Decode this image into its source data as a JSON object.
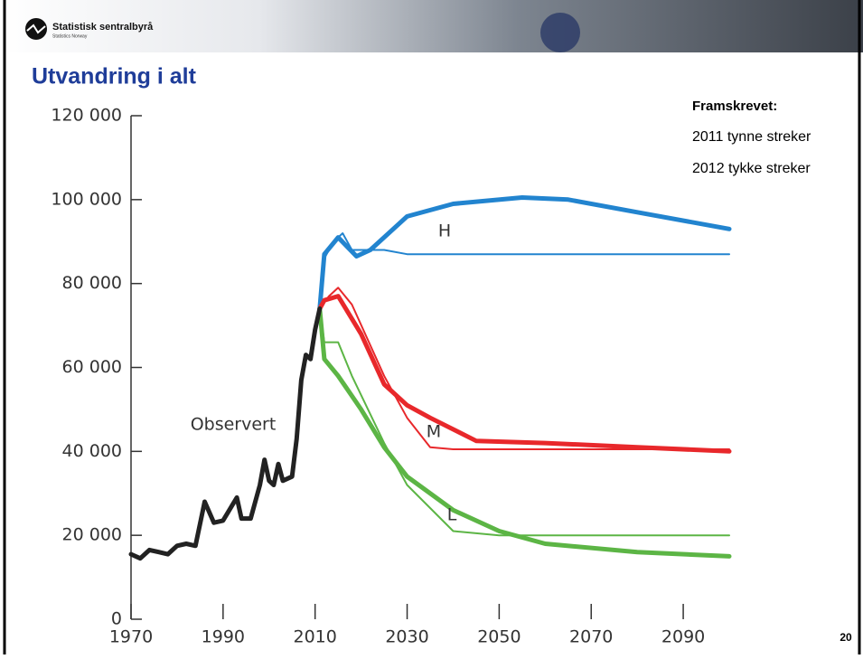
{
  "header": {
    "logo_name": "Statistisk sentralbyrå",
    "logo_subname": "Statistics Norway"
  },
  "slide_title": "Utvandring i alt",
  "notes": {
    "heading": "Framskrevet:",
    "lines": [
      "2011 tynne streker",
      "2012 tykke streker"
    ]
  },
  "page_number": "20",
  "chart_data": {
    "type": "line",
    "annotations": [
      "Observert",
      "H",
      "M",
      "L"
    ],
    "xlim": [
      1970,
      2100
    ],
    "xticks": [
      1970,
      1990,
      2010,
      2030,
      2050,
      2070,
      2090
    ],
    "ylim": [
      0,
      120000
    ],
    "yticks": [
      0,
      {
        "value": 20000,
        "label": "20 000"
      },
      {
        "value": 40000,
        "label": "40 000"
      },
      {
        "value": 60000,
        "label": "60 000"
      },
      {
        "value": 80000,
        "label": "80 000"
      },
      {
        "value": 100000,
        "label": "100 000"
      },
      {
        "value": 120000,
        "label": "120 000"
      }
    ],
    "series": [
      {
        "color": "#2284cf",
        "linewidth": 2,
        "x": [
          2011,
          2012,
          2014,
          2016,
          2018,
          2020,
          2025,
          2030,
          2040,
          2100
        ],
        "values": [
          74000,
          86000,
          90000,
          92000,
          88000,
          88000,
          88000,
          87000,
          87000,
          87000
        ]
      },
      {
        "color": "#2284cf",
        "linewidth": 5,
        "x": [
          2011,
          2012,
          2015,
          2019,
          2022,
          2030,
          2040,
          2055,
          2065,
          2080,
          2100
        ],
        "values": [
          74000,
          87000,
          91000,
          86500,
          88000,
          96000,
          99000,
          100500,
          100000,
          97000,
          93000
        ]
      },
      {
        "color": "#e8282b",
        "linewidth": 2,
        "x": [
          2011,
          2013,
          2015,
          2018,
          2025,
          2030,
          2035,
          2040,
          2100
        ],
        "values": [
          74000,
          77000,
          79000,
          75000,
          58000,
          48000,
          41000,
          40500,
          40500
        ]
      },
      {
        "color": "#e8282b",
        "linewidth": 5,
        "x": [
          2011,
          2012,
          2015,
          2020,
          2025,
          2030,
          2035,
          2045,
          2060,
          2080,
          2100
        ],
        "values": [
          74000,
          76000,
          77000,
          68000,
          56000,
          51000,
          48000,
          42500,
          42000,
          41000,
          40000
        ]
      },
      {
        "color": "#5cb545",
        "linewidth": 2,
        "x": [
          2011,
          2012,
          2015,
          2018,
          2025,
          2030,
          2040,
          2050,
          2100
        ],
        "values": [
          74000,
          66000,
          66000,
          58000,
          42000,
          32000,
          21000,
          20000,
          20000
        ]
      },
      {
        "color": "#5cb545",
        "linewidth": 5,
        "x": [
          2011,
          2012,
          2015,
          2020,
          2025,
          2030,
          2040,
          2050,
          2060,
          2080,
          2100
        ],
        "values": [
          74000,
          62000,
          58000,
          50000,
          41000,
          34000,
          26000,
          21000,
          18000,
          16000,
          15000
        ]
      },
      {
        "color": "#222222",
        "linewidth": 5,
        "x": [
          1970,
          1972,
          1974,
          1976,
          1978,
          1980,
          1982,
          1984,
          1986,
          1988,
          1990,
          1993,
          1994,
          1996,
          1998,
          1999,
          2000,
          2001,
          2002,
          2003,
          2005,
          2006,
          2007,
          2008,
          2009,
          2010,
          2011
        ],
        "values": [
          15500,
          14500,
          16500,
          16000,
          15500,
          17500,
          18000,
          17500,
          28000,
          23000,
          23500,
          29000,
          24000,
          24000,
          32000,
          38000,
          33000,
          32000,
          37000,
          33000,
          34000,
          43000,
          57000,
          63000,
          62000,
          69000,
          74000
        ]
      }
    ]
  }
}
